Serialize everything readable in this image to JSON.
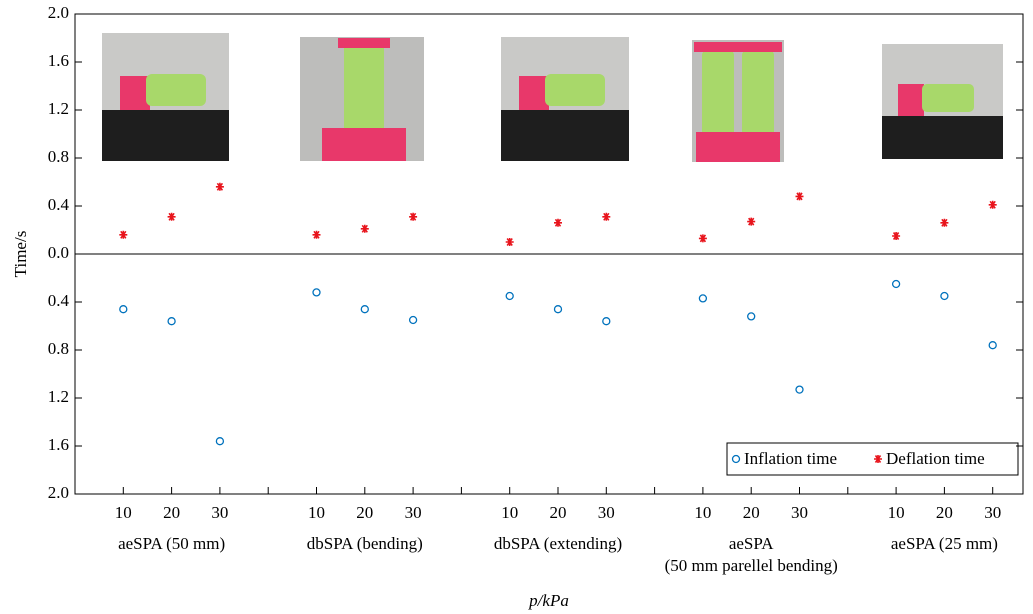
{
  "chart_data": {
    "type": "scatter",
    "y_label": "Time/s",
    "x_label": "p/kPa",
    "categories": [
      "10",
      "20",
      "30",
      "10",
      "20",
      "30",
      "10",
      "20",
      "30",
      "10",
      "20",
      "30",
      "10",
      "20",
      "30"
    ],
    "groups": [
      [
        "aeSPA (50 mm)"
      ],
      [
        "dbSPA (bending)"
      ],
      [
        "dbSPA (extending)"
      ],
      [
        "aeSPA",
        "(50 mm parellel bending)"
      ],
      [
        "aeSPA (25 mm)"
      ]
    ],
    "series": [
      {
        "name": "Inflation time",
        "color": "#0072bd",
        "marker": "circle",
        "axis": "y2",
        "values": [
          0.46,
          0.56,
          1.56,
          0.32,
          0.46,
          0.55,
          0.35,
          0.46,
          0.56,
          0.37,
          0.52,
          1.13,
          0.25,
          0.35,
          0.76
        ]
      },
      {
        "name": "Deflation time",
        "color": "#e8141c",
        "marker": "asterisk",
        "values": [
          0.16,
          0.31,
          0.56,
          0.16,
          0.21,
          0.31,
          0.1,
          0.26,
          0.31,
          0.13,
          0.27,
          0.48,
          0.15,
          0.26,
          0.41
        ]
      }
    ],
    "ylim": [
      0,
      2
    ],
    "yticks": [
      {
        "value": 0,
        "label": "0.0"
      },
      {
        "value": 0.4,
        "label": "0.4"
      },
      {
        "value": 0.8,
        "label": "0.8"
      },
      {
        "value": 1.2,
        "label": "1.2"
      },
      {
        "value": 1.6,
        "label": "1.6"
      },
      {
        "value": 2,
        "label": "2.0"
      }
    ],
    "y2lim": [
      0,
      2
    ],
    "y2ticks": [
      {
        "value": 0.4,
        "label": "0.4"
      },
      {
        "value": 0.8,
        "label": "0.8"
      },
      {
        "value": 1.2,
        "label": "1.2"
      },
      {
        "value": 1.6,
        "label": "1.6"
      },
      {
        "value": 2,
        "label": "2.0"
      }
    ],
    "legend": "lower right"
  }
}
